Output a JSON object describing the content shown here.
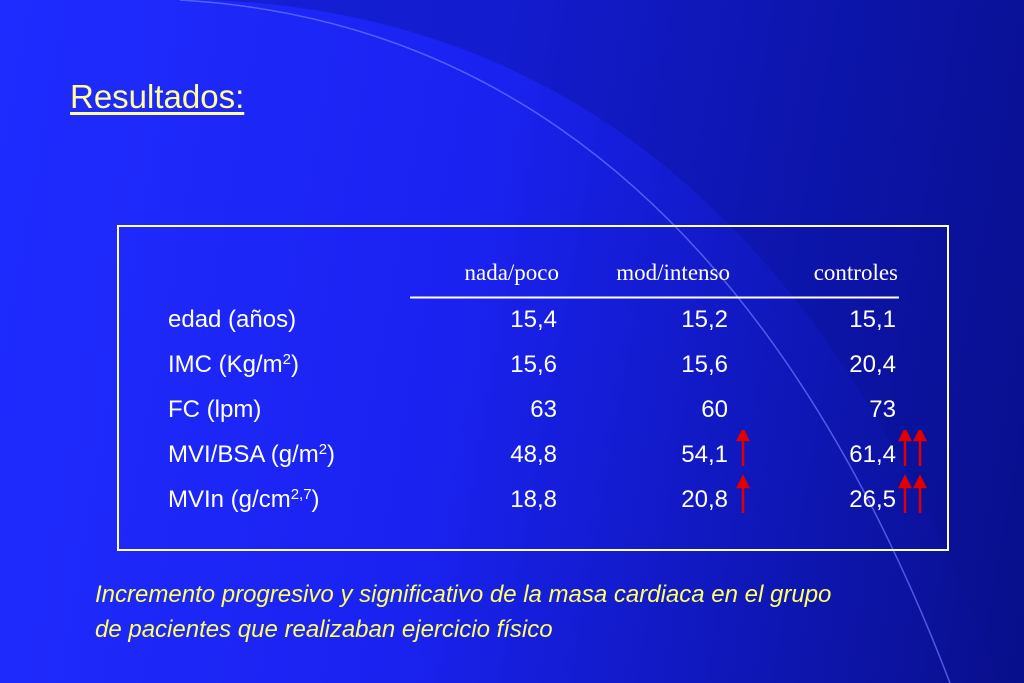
{
  "title": "Resultados:",
  "table": {
    "headers": [
      "nada/poco",
      "mod/intenso",
      "controles"
    ],
    "rows": [
      {
        "label": "edad (años)",
        "values": [
          "15,4",
          "15,2",
          "15,1"
        ]
      },
      {
        "label": "IMC (Kg/m",
        "label_sup": "2",
        "label_end": ")",
        "values": [
          "15,6",
          "15,6",
          "20,4"
        ]
      },
      {
        "label": "FC (lpm)",
        "values": [
          "63",
          "60",
          "73"
        ]
      },
      {
        "label": "MVI/BSA (g/m",
        "label_sup": "2",
        "label_end": ")",
        "values": [
          "48,8",
          "54,1",
          "61,4"
        ]
      },
      {
        "label": "MVIn (g/cm",
        "label_sup": "2,7",
        "label_end": ")",
        "values": [
          "18,8",
          "20,8",
          "26,5"
        ]
      }
    ]
  },
  "footnote": [
    "Incremento progresivo y significativo de la masa cardiaca en el grupo",
    "de pacientes que realizaban ejercicio físico"
  ]
}
